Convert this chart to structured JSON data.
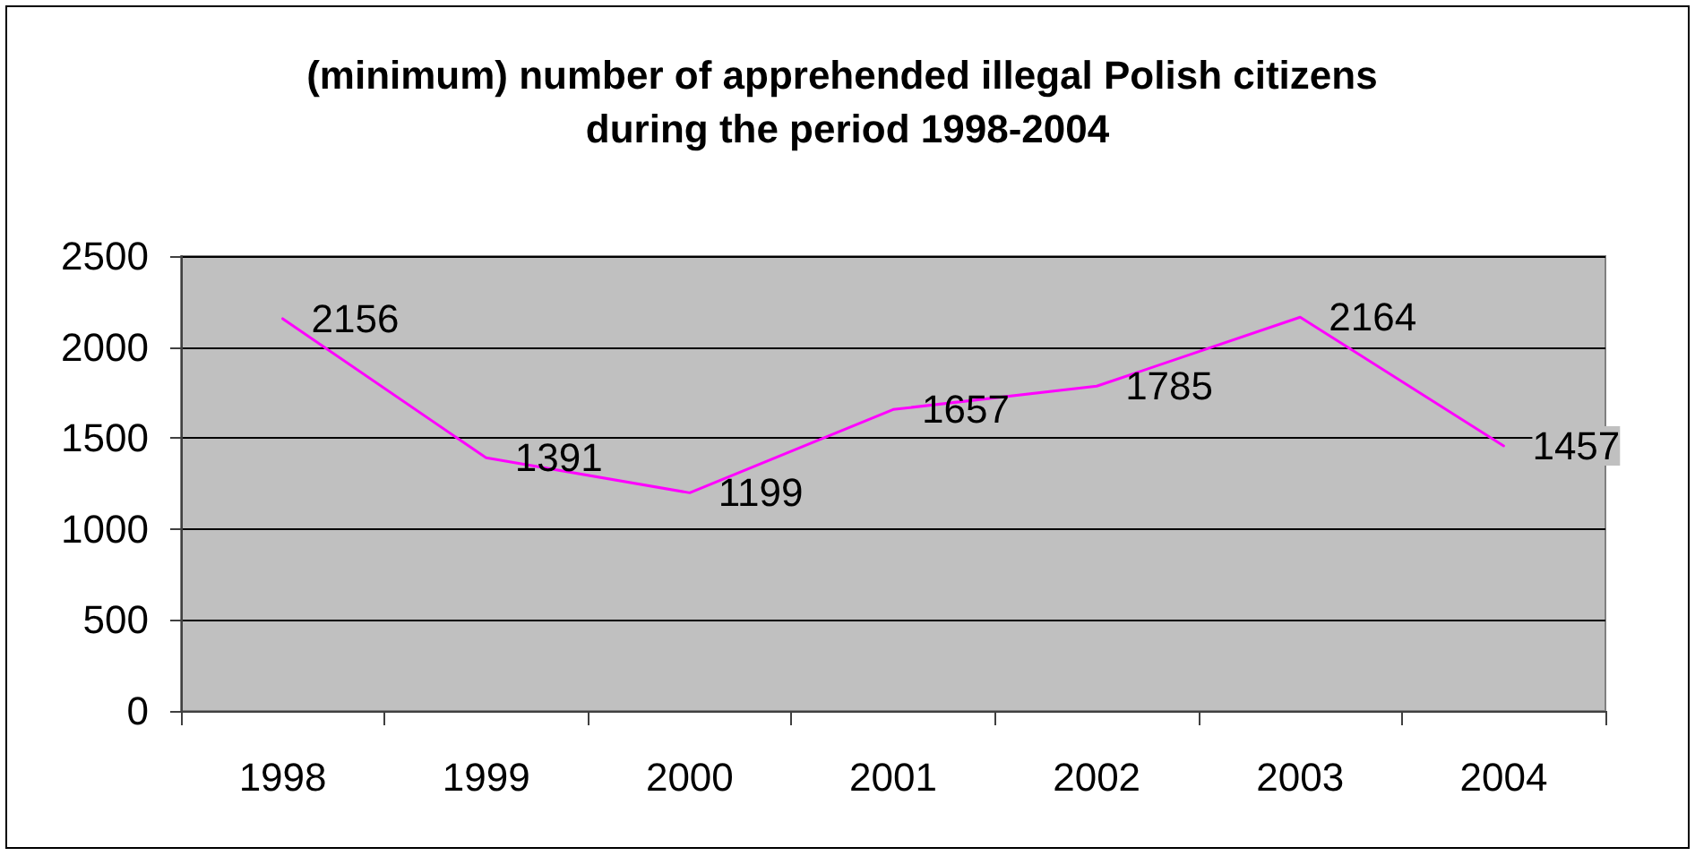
{
  "chart_data": {
    "type": "line",
    "title": "(minimum) number of apprehended illegal Polish citizens during the period 1998-2004",
    "categories": [
      "1998",
      "1999",
      "2000",
      "2001",
      "2002",
      "2003",
      "2004"
    ],
    "values": [
      2156,
      1391,
      1199,
      1657,
      1785,
      2164,
      1457
    ],
    "color": "#ff00ff",
    "ylim": [
      0,
      2500
    ],
    "yticks": [
      0,
      500,
      1000,
      1500,
      2000,
      2500
    ],
    "grid": "y",
    "data_labels": true
  }
}
